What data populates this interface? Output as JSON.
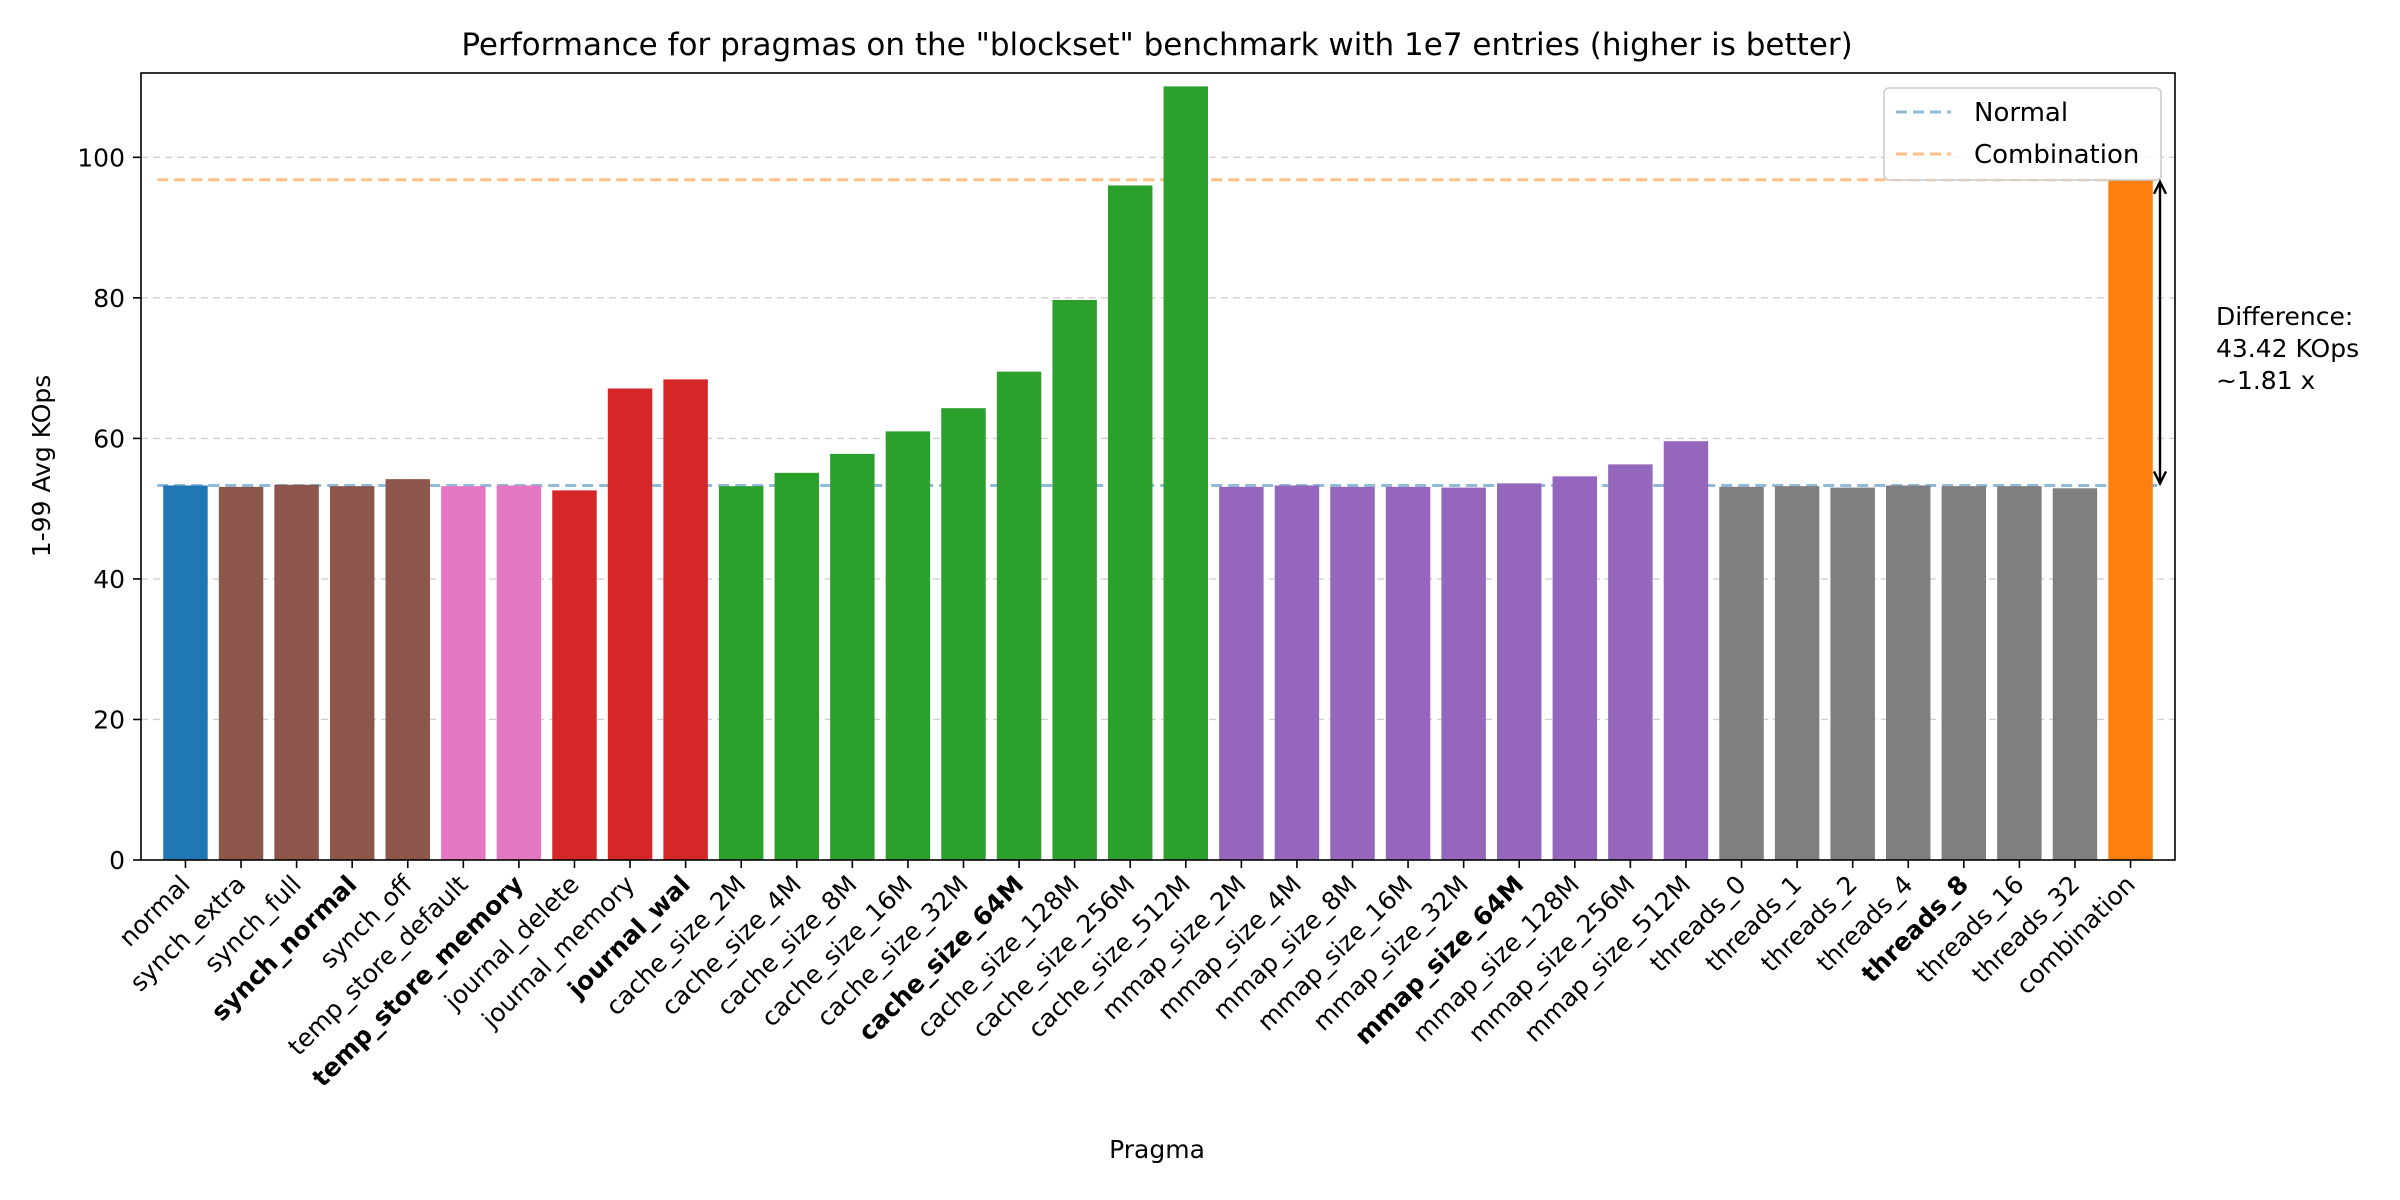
{
  "chart_data": {
    "type": "bar",
    "title": "Performance for pragmas on the \"blockset\" benchmark with 1e7 entries (higher is better)",
    "xlabel": "Pragma",
    "ylabel": "1-99 Avg KOps",
    "ylim": [
      0,
      112
    ],
    "yticks": [
      0,
      20,
      40,
      60,
      80,
      100
    ],
    "grid": "y-dashed",
    "legend_position": "top-right",
    "categories": [
      "normal",
      "synch_extra",
      "synch_full",
      "synch_normal",
      "synch_off",
      "temp_store_default",
      "temp_store_memory",
      "journal_delete",
      "journal_memory",
      "journal_wal",
      "cache_size_2M",
      "cache_size_4M",
      "cache_size_8M",
      "cache_size_16M",
      "cache_size_32M",
      "cache_size_64M",
      "cache_size_128M",
      "cache_size_256M",
      "cache_size_512M",
      "mmap_size_2M",
      "mmap_size_4M",
      "mmap_size_8M",
      "mmap_size_16M",
      "mmap_size_32M",
      "mmap_size_64M",
      "mmap_size_128M",
      "mmap_size_256M",
      "mmap_size_512M",
      "threads_0",
      "threads_1",
      "threads_2",
      "threads_4",
      "threads_8",
      "threads_16",
      "threads_32",
      "combination"
    ],
    "values": [
      53.3,
      53.1,
      53.4,
      53.2,
      54.2,
      53.2,
      53.3,
      52.6,
      67.1,
      68.4,
      53.2,
      55.1,
      57.8,
      61.0,
      64.3,
      69.5,
      79.7,
      96.0,
      110.1,
      53.1,
      53.3,
      53.1,
      53.1,
      53.0,
      53.6,
      54.6,
      56.3,
      59.6,
      53.1,
      53.2,
      53.0,
      53.3,
      53.2,
      53.2,
      52.9,
      96.8
    ],
    "bold_categories": [
      "synch_normal",
      "temp_store_memory",
      "journal_wal",
      "cache_size_64M",
      "mmap_size_64M",
      "threads_8"
    ],
    "bar_colors": [
      "#1f77b4",
      "#8c564b",
      "#8c564b",
      "#8c564b",
      "#8c564b",
      "#e377c2",
      "#e377c2",
      "#d62728",
      "#d62728",
      "#d62728",
      "#2ca02c",
      "#2ca02c",
      "#2ca02c",
      "#2ca02c",
      "#2ca02c",
      "#2ca02c",
      "#2ca02c",
      "#2ca02c",
      "#2ca02c",
      "#9467bd",
      "#9467bd",
      "#9467bd",
      "#9467bd",
      "#9467bd",
      "#9467bd",
      "#9467bd",
      "#9467bd",
      "#9467bd",
      "#7f7f7f",
      "#7f7f7f",
      "#7f7f7f",
      "#7f7f7f",
      "#7f7f7f",
      "#7f7f7f",
      "#7f7f7f",
      "#ff7f0e"
    ],
    "reference_lines": [
      {
        "name": "Normal",
        "value": 53.3,
        "color": "#1f77b4"
      },
      {
        "name": "Combination",
        "value": 96.8,
        "color": "#ff7f0e"
      }
    ],
    "annotation": {
      "lines": [
        "Difference:",
        "43.42 KOps",
        "~1.81 x"
      ],
      "from": 53.3,
      "to": 96.8
    }
  }
}
